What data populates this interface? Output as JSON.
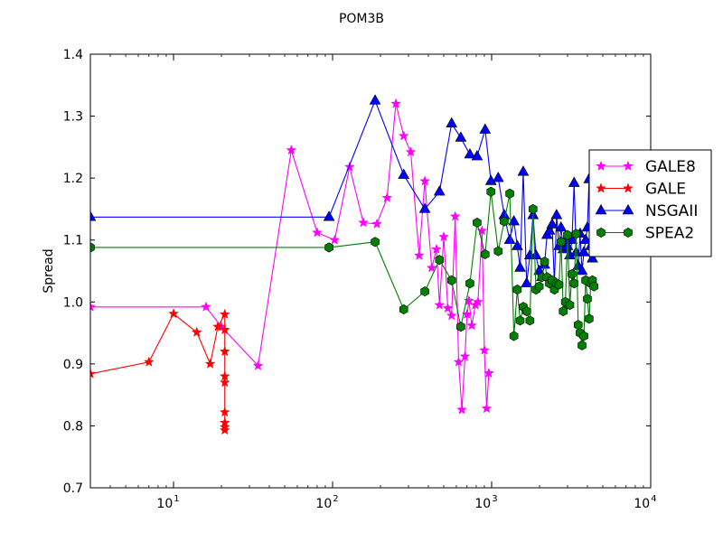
{
  "chart_data": {
    "type": "line",
    "title": "POM3B",
    "xlabel": "",
    "ylabel": "Spread",
    "xscale": "log",
    "xlim": [
      3,
      10000
    ],
    "ylim": [
      0.7,
      1.4
    ],
    "xticks": [
      {
        "value": 10,
        "base": "10",
        "exp": "1"
      },
      {
        "value": 100,
        "base": "10",
        "exp": "2"
      },
      {
        "value": 1000,
        "base": "10",
        "exp": "3"
      },
      {
        "value": 10000,
        "base": "10",
        "exp": "4"
      }
    ],
    "yticks": [
      0.7,
      0.8,
      0.9,
      1.0,
      1.1,
      1.2,
      1.3,
      1.4
    ],
    "ytick_labels": [
      "0.7",
      "0.8",
      "0.9",
      "1.0",
      "1.1",
      "1.2",
      "1.3",
      "1.4"
    ],
    "grid": false,
    "legend_position": "right",
    "series": [
      {
        "name": "GALE8",
        "color": "#ff00ff",
        "marker": "star",
        "x": [
          3,
          16,
          20,
          34,
          55,
          80,
          103,
          128,
          156,
          190,
          220,
          250,
          280,
          310,
          350,
          380,
          420,
          450,
          470,
          500,
          530,
          560,
          590,
          620,
          650,
          680,
          700,
          720,
          750,
          790,
          820,
          870,
          900,
          930,
          960
        ],
        "y": [
          0.992,
          0.992,
          0.96,
          0.897,
          1.245,
          1.112,
          1.1,
          1.218,
          1.128,
          1.126,
          1.168,
          1.32,
          1.268,
          1.242,
          1.075,
          1.195,
          1.055,
          1.085,
          0.995,
          1.105,
          0.99,
          0.978,
          1.138,
          0.903,
          0.826,
          0.912,
          0.98,
          1.002,
          0.962,
          0.995,
          1.0,
          1.115,
          0.922,
          0.828,
          0.885
        ]
      },
      {
        "name": "GALE",
        "color": "#ff0000",
        "marker": "star",
        "x": [
          3,
          7,
          10,
          14,
          17,
          19,
          21,
          21,
          21,
          21,
          21,
          21,
          21,
          21,
          21
        ],
        "y": [
          0.884,
          0.903,
          0.981,
          0.951,
          0.9,
          0.96,
          0.98,
          0.955,
          0.92,
          0.88,
          0.87,
          0.822,
          0.805,
          0.798,
          0.793
        ]
      },
      {
        "name": "NSGAII",
        "color": "#0000ff",
        "marker": "triangle",
        "x": [
          3,
          95,
          185,
          280,
          380,
          470,
          560,
          640,
          730,
          810,
          910,
          990,
          1100,
          1200,
          1300,
          1380,
          1450,
          1510,
          1580,
          1660,
          1740,
          1820,
          1900,
          1990,
          2070,
          2150,
          2230,
          2310,
          2400,
          2480,
          2560,
          2650,
          2730,
          2820,
          2910,
          3000,
          3100,
          3200,
          3300,
          3400,
          3500,
          3600,
          3700,
          3800,
          3900,
          4000,
          4100,
          4200,
          4300,
          4400
        ],
        "y": [
          1.137,
          1.137,
          1.325,
          1.205,
          1.15,
          1.178,
          1.288,
          1.265,
          1.238,
          1.235,
          1.278,
          1.195,
          1.2,
          1.14,
          1.1,
          1.13,
          1.09,
          1.055,
          1.21,
          1.03,
          1.075,
          1.14,
          1.075,
          1.05,
          1.04,
          1.06,
          1.108,
          1.115,
          1.125,
          1.03,
          1.14,
          1.09,
          1.12,
          1.085,
          1.1,
          1.09,
          1.075,
          1.1,
          1.192,
          1.08,
          1.058,
          1.11,
          1.05,
          1.08,
          1.1,
          1.12,
          1.198,
          1.09,
          1.07,
          1.08
        ]
      },
      {
        "name": "SPEA2",
        "color": "#008000",
        "marker": "hexagon",
        "x": [
          3,
          95,
          185,
          280,
          380,
          470,
          560,
          640,
          730,
          810,
          910,
          990,
          1100,
          1200,
          1300,
          1380,
          1450,
          1510,
          1580,
          1660,
          1740,
          1820,
          1900,
          1990,
          2070,
          2150,
          2230,
          2310,
          2400,
          2480,
          2560,
          2650,
          2730,
          2820,
          2910,
          3000,
          3100,
          3200,
          3300,
          3400,
          3500,
          3600,
          3700,
          3800,
          3900,
          4000,
          4100,
          4200,
          4300,
          4400
        ],
        "y": [
          1.088,
          1.088,
          1.097,
          0.988,
          1.017,
          1.068,
          1.035,
          0.96,
          1.03,
          1.128,
          1.077,
          1.178,
          1.082,
          1.13,
          1.175,
          0.945,
          1.02,
          0.97,
          0.992,
          0.985,
          0.97,
          1.15,
          1.02,
          1.025,
          1.04,
          1.065,
          1.04,
          1.03,
          1.035,
          1.02,
          1.03,
          1.028,
          1.097,
          0.985,
          1.0,
          1.108,
          0.995,
          1.045,
          1.03,
          1.11,
          0.963,
          0.95,
          0.93,
          0.945,
          1.035,
          1.005,
          0.973,
          1.03,
          1.035,
          1.025
        ]
      }
    ]
  }
}
